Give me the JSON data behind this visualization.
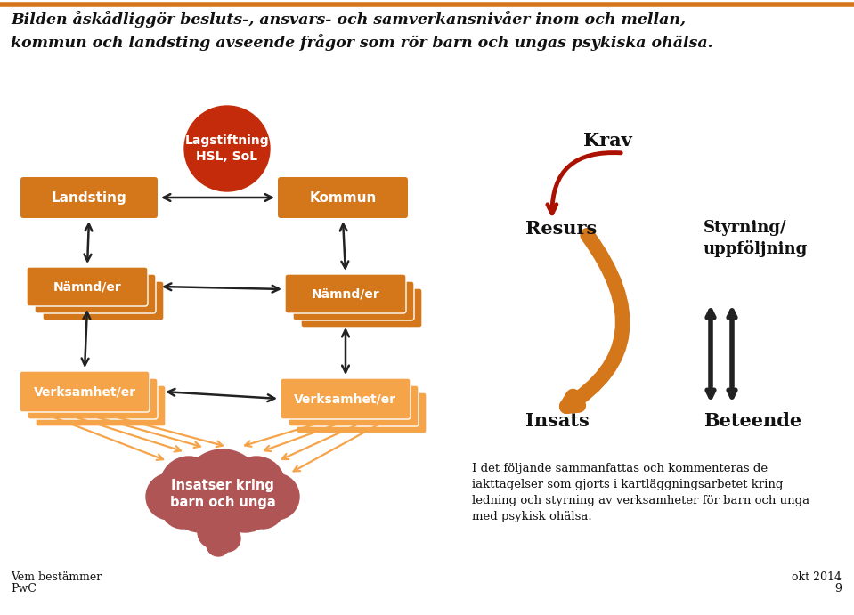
{
  "title_line1": "Bilden åskådliggör besluts-, ansvars- och samverkansnivåer inom och mellan,",
  "title_line2": "kommun och landsting avseende frågor som rör barn och ungas psykiska ohälsa.",
  "orange_dark": "#D4761A",
  "orange_light": "#F5A44A",
  "red_circle": "#C42B0A",
  "red_cloud": "#B05555",
  "bg_color": "#FFFFFF",
  "text_dark": "#111111",
  "arrow_dark": "#222222",
  "arrow_orange": "#D4761A",
  "arrow_red": "#AA1100",
  "footer_left1": "Vem bestämmer",
  "footer_left2": "PwC",
  "footer_right1": "okt 2014",
  "footer_right2": "9",
  "bottom_text": "I det följande sammanfattas och kommenteras de\niakttagelser som gjorts i kartläggningsarbetet kring\nledning och styrning av verksamheter för barn och unga\nmed psykisk ohälsa."
}
